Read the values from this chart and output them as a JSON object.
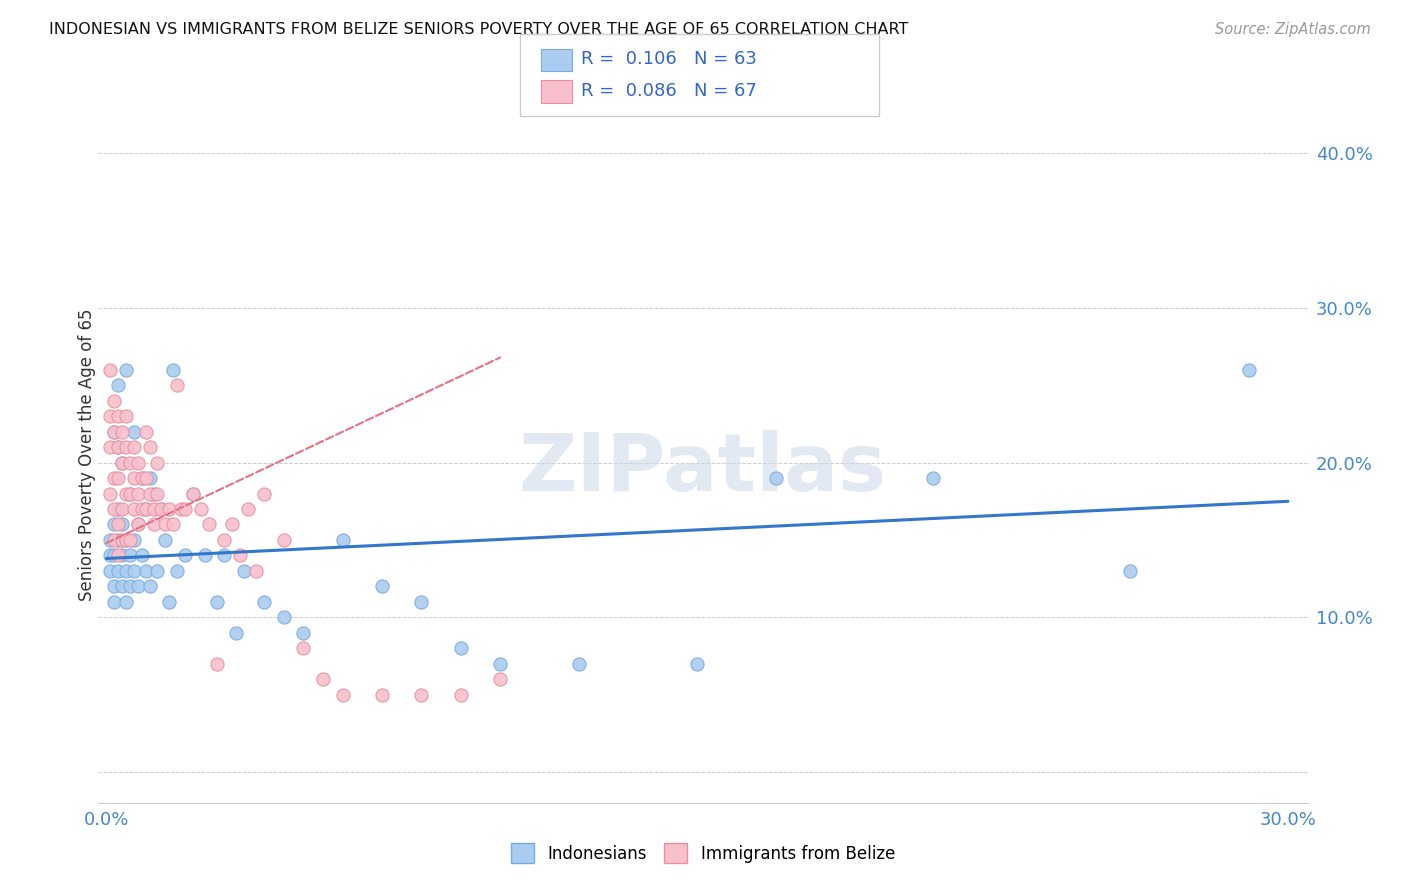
{
  "title": "INDONESIAN VS IMMIGRANTS FROM BELIZE SENIORS POVERTY OVER THE AGE OF 65 CORRELATION CHART",
  "source": "Source: ZipAtlas.com",
  "ylabel": "Seniors Poverty Over the Age of 65",
  "xlim": [
    -0.002,
    0.305
  ],
  "ylim": [
    -0.02,
    0.43
  ],
  "xtick_positions": [
    0.0,
    0.1,
    0.2,
    0.3
  ],
  "xticklabels": [
    "0.0%",
    "",
    "",
    "30.0%"
  ],
  "ytick_positions": [
    0.0,
    0.1,
    0.2,
    0.3,
    0.4
  ],
  "yticklabels": [
    "",
    "10.0%",
    "20.0%",
    "30.0%",
    "40.0%"
  ],
  "r_blue": 0.106,
  "n_blue": 63,
  "r_pink": 0.086,
  "n_pink": 67,
  "blue_color": "#aaccf0",
  "blue_edge": "#7aabdf",
  "pink_color": "#f8c0cc",
  "pink_edge": "#e890a0",
  "blue_line_color": "#3377cc",
  "pink_line_color": "#e87080",
  "watermark": "ZIPatlas",
  "indonesians_x": [
    0.001,
    0.001,
    0.001,
    0.002,
    0.002,
    0.002,
    0.002,
    0.002,
    0.003,
    0.003,
    0.003,
    0.003,
    0.003,
    0.004,
    0.004,
    0.004,
    0.004,
    0.005,
    0.005,
    0.005,
    0.005,
    0.006,
    0.006,
    0.006,
    0.007,
    0.007,
    0.007,
    0.008,
    0.008,
    0.009,
    0.009,
    0.01,
    0.01,
    0.011,
    0.011,
    0.012,
    0.013,
    0.014,
    0.015,
    0.016,
    0.017,
    0.018,
    0.02,
    0.022,
    0.025,
    0.028,
    0.03,
    0.033,
    0.035,
    0.04,
    0.045,
    0.05,
    0.06,
    0.07,
    0.08,
    0.09,
    0.1,
    0.12,
    0.15,
    0.17,
    0.21,
    0.26,
    0.29
  ],
  "indonesians_y": [
    0.13,
    0.14,
    0.15,
    0.11,
    0.12,
    0.14,
    0.16,
    0.22,
    0.13,
    0.15,
    0.17,
    0.21,
    0.25,
    0.12,
    0.14,
    0.16,
    0.2,
    0.11,
    0.13,
    0.15,
    0.26,
    0.12,
    0.14,
    0.18,
    0.13,
    0.15,
    0.22,
    0.12,
    0.16,
    0.14,
    0.19,
    0.13,
    0.17,
    0.12,
    0.19,
    0.18,
    0.13,
    0.17,
    0.15,
    0.11,
    0.26,
    0.13,
    0.14,
    0.18,
    0.14,
    0.11,
    0.14,
    0.09,
    0.13,
    0.11,
    0.1,
    0.09,
    0.15,
    0.12,
    0.11,
    0.08,
    0.07,
    0.07,
    0.07,
    0.19,
    0.19,
    0.13,
    0.26
  ],
  "belize_x": [
    0.001,
    0.001,
    0.001,
    0.001,
    0.002,
    0.002,
    0.002,
    0.002,
    0.002,
    0.003,
    0.003,
    0.003,
    0.003,
    0.003,
    0.004,
    0.004,
    0.004,
    0.004,
    0.005,
    0.005,
    0.005,
    0.005,
    0.006,
    0.006,
    0.006,
    0.007,
    0.007,
    0.007,
    0.008,
    0.008,
    0.008,
    0.009,
    0.009,
    0.01,
    0.01,
    0.01,
    0.011,
    0.011,
    0.012,
    0.012,
    0.013,
    0.013,
    0.014,
    0.015,
    0.016,
    0.017,
    0.018,
    0.019,
    0.02,
    0.022,
    0.024,
    0.026,
    0.028,
    0.03,
    0.032,
    0.034,
    0.036,
    0.038,
    0.04,
    0.045,
    0.05,
    0.055,
    0.06,
    0.07,
    0.08,
    0.09,
    0.1
  ],
  "belize_y": [
    0.26,
    0.23,
    0.21,
    0.18,
    0.24,
    0.22,
    0.19,
    0.17,
    0.15,
    0.23,
    0.21,
    0.19,
    0.16,
    0.14,
    0.22,
    0.2,
    0.17,
    0.15,
    0.23,
    0.21,
    0.18,
    0.15,
    0.2,
    0.18,
    0.15,
    0.21,
    0.19,
    0.17,
    0.2,
    0.18,
    0.16,
    0.19,
    0.17,
    0.22,
    0.19,
    0.17,
    0.21,
    0.18,
    0.17,
    0.16,
    0.2,
    0.18,
    0.17,
    0.16,
    0.17,
    0.16,
    0.25,
    0.17,
    0.17,
    0.18,
    0.17,
    0.16,
    0.07,
    0.15,
    0.16,
    0.14,
    0.17,
    0.13,
    0.18,
    0.15,
    0.08,
    0.06,
    0.05,
    0.05,
    0.05,
    0.05,
    0.06
  ],
  "blue_trend_x": [
    0.0,
    0.3
  ],
  "blue_trend_y": [
    0.138,
    0.175
  ],
  "pink_trend_x": [
    0.0,
    0.1
  ],
  "pink_trend_y": [
    0.148,
    0.268
  ]
}
